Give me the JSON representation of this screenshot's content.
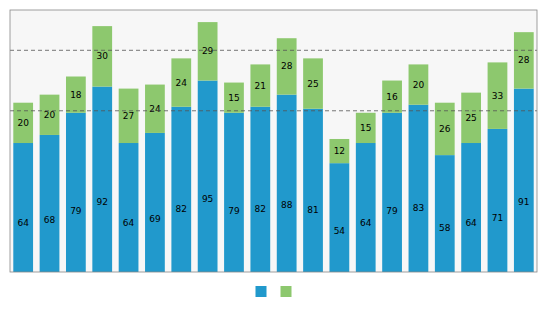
{
  "chart_data": {
    "type": "bar",
    "stacked": true,
    "data_labels": true,
    "tick_labels": false,
    "grid": true,
    "legend": "bottom",
    "categories": [
      null,
      null,
      null,
      null,
      null,
      null,
      null,
      null,
      null,
      null,
      null,
      null,
      null,
      null,
      null,
      null,
      null,
      null,
      null,
      null
    ],
    "series": [
      {
        "color": "#2199CC",
        "values": [
          64,
          68,
          79,
          92,
          64,
          69,
          82,
          95,
          79,
          82,
          88,
          81,
          54,
          64,
          79,
          83,
          58,
          64,
          71,
          91
        ]
      },
      {
        "color": "#8DC86E",
        "values": [
          20,
          20,
          18,
          30,
          27,
          24,
          24,
          29,
          15,
          21,
          28,
          25,
          12,
          15,
          16,
          20,
          26,
          25,
          33,
          28
        ]
      }
    ],
    "ylim": [
      0,
      130
    ],
    "yticks": [
      80,
      110
    ]
  }
}
